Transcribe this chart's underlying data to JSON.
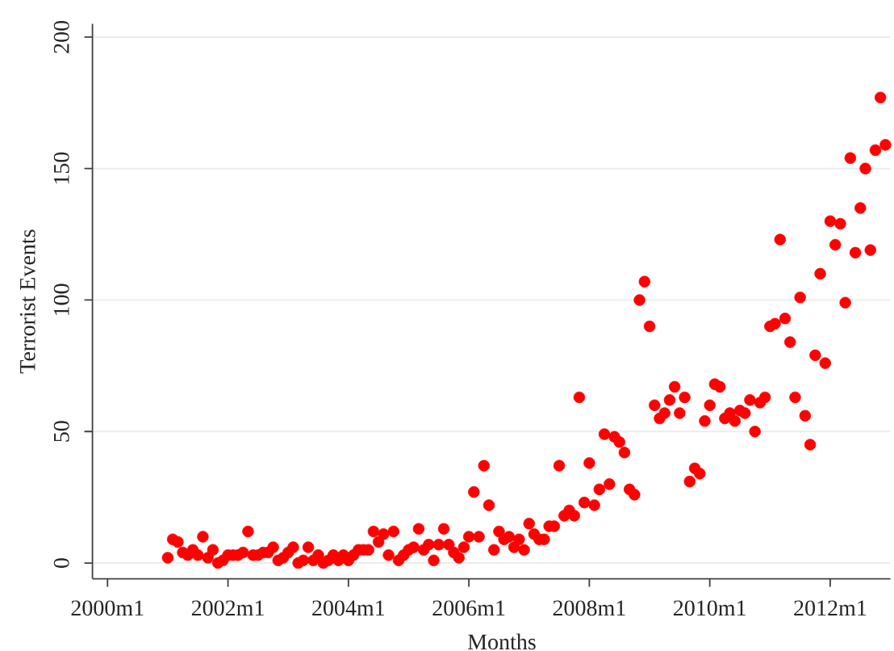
{
  "chart_data": {
    "type": "scatter",
    "xlabel": "Months",
    "ylabel": "Terrorist Events",
    "x": [
      "2001-01",
      "2001-02",
      "2001-03",
      "2001-04",
      "2001-05",
      "2001-06",
      "2001-07",
      "2001-08",
      "2001-09",
      "2001-10",
      "2001-11",
      "2001-12",
      "2002-01",
      "2002-02",
      "2002-03",
      "2002-04",
      "2002-05",
      "2002-06",
      "2002-07",
      "2002-08",
      "2002-09",
      "2002-10",
      "2002-11",
      "2002-12",
      "2003-01",
      "2003-02",
      "2003-03",
      "2003-04",
      "2003-05",
      "2003-06",
      "2003-07",
      "2003-08",
      "2003-09",
      "2003-10",
      "2003-11",
      "2003-12",
      "2004-01",
      "2004-02",
      "2004-03",
      "2004-04",
      "2004-05",
      "2004-06",
      "2004-07",
      "2004-08",
      "2004-09",
      "2004-10",
      "2004-11",
      "2004-12",
      "2005-01",
      "2005-02",
      "2005-03",
      "2005-04",
      "2005-05",
      "2005-06",
      "2005-07",
      "2005-08",
      "2005-09",
      "2005-10",
      "2005-11",
      "2005-12",
      "2006-01",
      "2006-02",
      "2006-03",
      "2006-04",
      "2006-05",
      "2006-06",
      "2006-07",
      "2006-08",
      "2006-09",
      "2006-10",
      "2006-11",
      "2006-12",
      "2007-01",
      "2007-02",
      "2007-03",
      "2007-04",
      "2007-05",
      "2007-06",
      "2007-07",
      "2007-08",
      "2007-09",
      "2007-10",
      "2007-11",
      "2007-12",
      "2008-01",
      "2008-02",
      "2008-03",
      "2008-04",
      "2008-05",
      "2008-06",
      "2008-07",
      "2008-08",
      "2008-09",
      "2008-10",
      "2008-11",
      "2008-12",
      "2009-01",
      "2009-02",
      "2009-03",
      "2009-04",
      "2009-05",
      "2009-06",
      "2009-07",
      "2009-08",
      "2009-09",
      "2009-10",
      "2009-11",
      "2009-12",
      "2010-01",
      "2010-02",
      "2010-03",
      "2010-04",
      "2010-05",
      "2010-06",
      "2010-07",
      "2010-08",
      "2010-09",
      "2010-10",
      "2010-11",
      "2010-12",
      "2011-01",
      "2011-02",
      "2011-03",
      "2011-04",
      "2011-05",
      "2011-06",
      "2011-07",
      "2011-08",
      "2011-09",
      "2011-10",
      "2011-11",
      "2011-12",
      "2012-01",
      "2012-02",
      "2012-03",
      "2012-04",
      "2012-05",
      "2012-06",
      "2012-07",
      "2012-08",
      "2012-09",
      "2012-10",
      "2012-11",
      "2012-12"
    ],
    "values": [
      2,
      9,
      8,
      4,
      3,
      5,
      3,
      10,
      2,
      5,
      0,
      1,
      3,
      3,
      3,
      4,
      12,
      3,
      3,
      4,
      4,
      6,
      1,
      2,
      4,
      6,
      0,
      1,
      6,
      1,
      3,
      0,
      1,
      3,
      1,
      3,
      1,
      3,
      5,
      5,
      5,
      12,
      8,
      11,
      3,
      12,
      1,
      3,
      5,
      6,
      13,
      5,
      7,
      1,
      7,
      13,
      7,
      4,
      2,
      6,
      10,
      27,
      10,
      37,
      22,
      5,
      12,
      9,
      10,
      6,
      9,
      5,
      15,
      11,
      9,
      9,
      14,
      14,
      37,
      18,
      20,
      18,
      63,
      23,
      38,
      22,
      28,
      49,
      30,
      48,
      46,
      42,
      28,
      26,
      100,
      107,
      90,
      60,
      55,
      57,
      62,
      67,
      57,
      63,
      31,
      36,
      34,
      54,
      60,
      68,
      67,
      55,
      57,
      54,
      58,
      57,
      62,
      50,
      61,
      63,
      90,
      91,
      123,
      93,
      84,
      63,
      101,
      56,
      45,
      79,
      110,
      76,
      130,
      121,
      129,
      99,
      154,
      118,
      135,
      150,
      119,
      157,
      177,
      159
    ],
    "color": "#ff0000",
    "marker": "circle",
    "grid": "y",
    "xlim": [
      "1999-10",
      "2013-01"
    ],
    "ylim": [
      -6,
      205
    ],
    "xticks": [
      {
        "value": "2000-01",
        "label": "2000m1"
      },
      {
        "value": "2002-01",
        "label": "2002m1"
      },
      {
        "value": "2004-01",
        "label": "2004m1"
      },
      {
        "value": "2006-01",
        "label": "2006m1"
      },
      {
        "value": "2008-01",
        "label": "2008m1"
      },
      {
        "value": "2010-01",
        "label": "2010m1"
      },
      {
        "value": "2012-01",
        "label": "2012m1"
      }
    ],
    "yticks": [
      0,
      50,
      100,
      150,
      200
    ]
  }
}
